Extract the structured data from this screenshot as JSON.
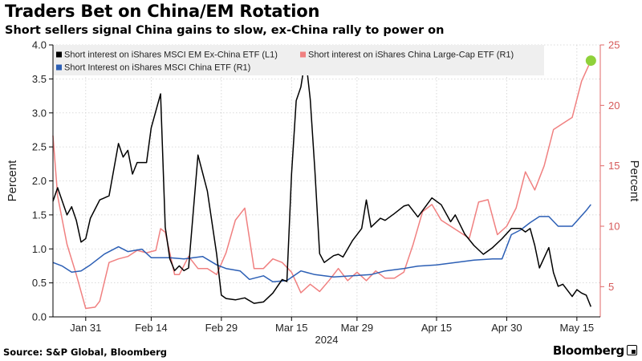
{
  "header": {
    "title": "Traders Bet on China/EM Rotation",
    "subtitle": "Short sellers signal China gains to slow, ex-China rally to power on"
  },
  "footer": {
    "source": "Source: S&P Global, Bloomberg",
    "brand": "Bloomberg"
  },
  "chart_data": {
    "type": "line",
    "ylabel_left": "Percent",
    "ylabel_right": "Percent",
    "xlabel": "2024",
    "left_axis": {
      "ylim": [
        0.0,
        4.0
      ],
      "ticks": [
        "0.0",
        "0.5",
        "1.0",
        "1.5",
        "2.0",
        "2.5",
        "3.0",
        "3.5",
        "4.0"
      ]
    },
    "right_axis": {
      "ylim": [
        2.5,
        25.0
      ],
      "ticks": [
        "5",
        "10",
        "15",
        "20",
        "25"
      ]
    },
    "x_range": [
      "2024-01-24",
      "2024-05-20"
    ],
    "x_ticks": [
      {
        "date": "2024-01-31",
        "label": "Jan 31"
      },
      {
        "date": "2024-02-14",
        "label": "Feb 14"
      },
      {
        "date": "2024-02-29",
        "label": "Feb 29"
      },
      {
        "date": "2024-03-15",
        "label": "Mar 15"
      },
      {
        "date": "2024-03-29",
        "label": "Mar 29"
      },
      {
        "date": "2024-04-15",
        "label": "Apr 15"
      },
      {
        "date": "2024-04-30",
        "label": "Apr 30"
      },
      {
        "date": "2024-05-15",
        "label": "May 15"
      }
    ],
    "grid": true,
    "legend_position": "top",
    "highlight": {
      "series": "Short interest on iShares China Large-Cap ETF (R1)",
      "date": "2024-05-18",
      "value": 23.7,
      "color": "#8fd13a"
    },
    "series": [
      {
        "name": "Short interest on iShares MSCI EM Ex-China ETF (L1)",
        "axis": "left",
        "color": "#000000",
        "points": [
          [
            "2024-01-24",
            1.7
          ],
          [
            "2024-01-25",
            1.9
          ],
          [
            "2024-01-27",
            1.5
          ],
          [
            "2024-01-28",
            1.62
          ],
          [
            "2024-01-29",
            1.42
          ],
          [
            "2024-01-30",
            1.1
          ],
          [
            "2024-01-31",
            1.15
          ],
          [
            "2024-02-01",
            1.45
          ],
          [
            "2024-02-03",
            1.72
          ],
          [
            "2024-02-05",
            1.78
          ],
          [
            "2024-02-07",
            2.55
          ],
          [
            "2024-02-08",
            2.35
          ],
          [
            "2024-02-09",
            2.45
          ],
          [
            "2024-02-10",
            2.1
          ],
          [
            "2024-02-11",
            2.27
          ],
          [
            "2024-02-13",
            2.27
          ],
          [
            "2024-02-14",
            2.78
          ],
          [
            "2024-02-16",
            3.28
          ],
          [
            "2024-02-17",
            1.32
          ],
          [
            "2024-02-18",
            0.85
          ],
          [
            "2024-02-19",
            0.68
          ],
          [
            "2024-02-20",
            0.75
          ],
          [
            "2024-02-21",
            0.68
          ],
          [
            "2024-02-22",
            0.72
          ],
          [
            "2024-02-24",
            2.38
          ],
          [
            "2024-02-26",
            1.85
          ],
          [
            "2024-02-28",
            0.92
          ],
          [
            "2024-02-29",
            0.32
          ],
          [
            "2024-03-01",
            0.27
          ],
          [
            "2024-03-03",
            0.25
          ],
          [
            "2024-03-05",
            0.28
          ],
          [
            "2024-03-07",
            0.2
          ],
          [
            "2024-03-09",
            0.22
          ],
          [
            "2024-03-11",
            0.35
          ],
          [
            "2024-03-13",
            0.55
          ],
          [
            "2024-03-14",
            0.52
          ],
          [
            "2024-03-15",
            2.1
          ],
          [
            "2024-03-16",
            3.18
          ],
          [
            "2024-03-17",
            3.38
          ],
          [
            "2024-03-18",
            3.82
          ],
          [
            "2024-03-19",
            3.2
          ],
          [
            "2024-03-20",
            2.15
          ],
          [
            "2024-03-21",
            0.93
          ],
          [
            "2024-03-22",
            0.8
          ],
          [
            "2024-03-24",
            0.9
          ],
          [
            "2024-03-25",
            0.92
          ],
          [
            "2024-03-26",
            0.88
          ],
          [
            "2024-03-28",
            1.12
          ],
          [
            "2024-03-30",
            1.3
          ],
          [
            "2024-03-31",
            1.72
          ],
          [
            "2024-04-01",
            1.32
          ],
          [
            "2024-04-03",
            1.45
          ],
          [
            "2024-04-04",
            1.42
          ],
          [
            "2024-04-06",
            1.52
          ],
          [
            "2024-04-08",
            1.63
          ],
          [
            "2024-04-09",
            1.65
          ],
          [
            "2024-04-11",
            1.47
          ],
          [
            "2024-04-14",
            1.75
          ],
          [
            "2024-04-16",
            1.65
          ],
          [
            "2024-04-18",
            1.4
          ],
          [
            "2024-04-19",
            1.5
          ],
          [
            "2024-04-21",
            1.22
          ],
          [
            "2024-04-23",
            1.05
          ],
          [
            "2024-04-25",
            0.92
          ],
          [
            "2024-04-27",
            1.02
          ],
          [
            "2024-04-29",
            1.15
          ],
          [
            "2024-05-01",
            1.3
          ],
          [
            "2024-05-03",
            1.3
          ],
          [
            "2024-05-04",
            1.25
          ],
          [
            "2024-05-05",
            1.3
          ],
          [
            "2024-05-06",
            1.05
          ],
          [
            "2024-05-07",
            0.72
          ],
          [
            "2024-05-09",
            1.02
          ],
          [
            "2024-05-10",
            0.65
          ],
          [
            "2024-05-11",
            0.45
          ],
          [
            "2024-05-12",
            0.48
          ],
          [
            "2024-05-14",
            0.3
          ],
          [
            "2024-05-15",
            0.4
          ],
          [
            "2024-05-16",
            0.35
          ],
          [
            "2024-05-17",
            0.32
          ],
          [
            "2024-05-18",
            0.15
          ]
        ]
      },
      {
        "name": "Short Interest on iShares MSCI China ETF (R1)",
        "axis": "right",
        "color": "#2c5fb5",
        "points": [
          [
            "2024-01-24",
            7.0
          ],
          [
            "2024-01-26",
            6.7
          ],
          [
            "2024-01-28",
            6.2
          ],
          [
            "2024-01-30",
            6.3
          ],
          [
            "2024-02-01",
            6.8
          ],
          [
            "2024-02-04",
            7.7
          ],
          [
            "2024-02-07",
            8.3
          ],
          [
            "2024-02-09",
            7.9
          ],
          [
            "2024-02-12",
            8.1
          ],
          [
            "2024-02-14",
            7.4
          ],
          [
            "2024-02-18",
            7.4
          ],
          [
            "2024-02-21",
            7.3
          ],
          [
            "2024-02-25",
            7.5
          ],
          [
            "2024-02-28",
            6.8
          ],
          [
            "2024-03-01",
            6.5
          ],
          [
            "2024-03-04",
            6.3
          ],
          [
            "2024-03-06",
            5.6
          ],
          [
            "2024-03-09",
            5.9
          ],
          [
            "2024-03-11",
            5.4
          ],
          [
            "2024-03-14",
            5.5
          ],
          [
            "2024-03-17",
            6.3
          ],
          [
            "2024-03-20",
            6.0
          ],
          [
            "2024-03-24",
            5.8
          ],
          [
            "2024-03-28",
            5.9
          ],
          [
            "2024-04-01",
            6.0
          ],
          [
            "2024-04-04",
            6.3
          ],
          [
            "2024-04-08",
            6.5
          ],
          [
            "2024-04-11",
            6.7
          ],
          [
            "2024-04-15",
            6.8
          ],
          [
            "2024-04-19",
            7.0
          ],
          [
            "2024-04-23",
            7.2
          ],
          [
            "2024-04-27",
            7.3
          ],
          [
            "2024-04-29",
            7.3
          ],
          [
            "2024-05-01",
            9.3
          ],
          [
            "2024-05-03",
            9.7
          ],
          [
            "2024-05-05",
            10.3
          ],
          [
            "2024-05-07",
            10.8
          ],
          [
            "2024-05-09",
            10.8
          ],
          [
            "2024-05-11",
            10.0
          ],
          [
            "2024-05-14",
            10.0
          ],
          [
            "2024-05-17",
            11.3
          ],
          [
            "2024-05-18",
            11.8
          ]
        ]
      },
      {
        "name": "Short interest on iShares China Large-Cap ETF (R1)",
        "axis": "right",
        "color": "#f08080",
        "points": [
          [
            "2024-01-24",
            17.5
          ],
          [
            "2024-01-25",
            12.5
          ],
          [
            "2024-01-27",
            8.5
          ],
          [
            "2024-01-29",
            6.0
          ],
          [
            "2024-01-31",
            3.2
          ],
          [
            "2024-02-02",
            3.3
          ],
          [
            "2024-02-03",
            3.8
          ],
          [
            "2024-02-05",
            7.0
          ],
          [
            "2024-02-07",
            7.3
          ],
          [
            "2024-02-09",
            7.5
          ],
          [
            "2024-02-11",
            8.0
          ],
          [
            "2024-02-13",
            7.8
          ],
          [
            "2024-02-15",
            8.0
          ],
          [
            "2024-02-16",
            9.8
          ],
          [
            "2024-02-17",
            9.5
          ],
          [
            "2024-02-19",
            6.0
          ],
          [
            "2024-02-20",
            6.0
          ],
          [
            "2024-02-22",
            7.5
          ],
          [
            "2024-02-24",
            6.5
          ],
          [
            "2024-02-26",
            6.5
          ],
          [
            "2024-02-28",
            6.0
          ],
          [
            "2024-03-01",
            7.8
          ],
          [
            "2024-03-03",
            10.5
          ],
          [
            "2024-03-05",
            11.5
          ],
          [
            "2024-03-07",
            6.5
          ],
          [
            "2024-03-09",
            6.5
          ],
          [
            "2024-03-11",
            7.3
          ],
          [
            "2024-03-13",
            7.0
          ],
          [
            "2024-03-15",
            6.2
          ],
          [
            "2024-03-17",
            4.5
          ],
          [
            "2024-03-19",
            5.2
          ],
          [
            "2024-03-21",
            4.6
          ],
          [
            "2024-03-23",
            5.5
          ],
          [
            "2024-03-25",
            6.5
          ],
          [
            "2024-03-27",
            5.5
          ],
          [
            "2024-03-29",
            6.2
          ],
          [
            "2024-03-31",
            5.5
          ],
          [
            "2024-04-02",
            6.3
          ],
          [
            "2024-04-04",
            5.7
          ],
          [
            "2024-04-06",
            5.7
          ],
          [
            "2024-04-08",
            6.2
          ],
          [
            "2024-04-10",
            8.5
          ],
          [
            "2024-04-12",
            11.2
          ],
          [
            "2024-04-14",
            11.8
          ],
          [
            "2024-04-16",
            10.5
          ],
          [
            "2024-04-18",
            10.0
          ],
          [
            "2024-04-20",
            9.5
          ],
          [
            "2024-04-22",
            9.0
          ],
          [
            "2024-04-24",
            12.0
          ],
          [
            "2024-04-26",
            12.2
          ],
          [
            "2024-04-28",
            9.3
          ],
          [
            "2024-04-30",
            10.0
          ],
          [
            "2024-05-02",
            11.5
          ],
          [
            "2024-05-04",
            14.5
          ],
          [
            "2024-05-06",
            13.0
          ],
          [
            "2024-05-08",
            15.0
          ],
          [
            "2024-05-10",
            18.0
          ],
          [
            "2024-05-12",
            18.5
          ],
          [
            "2024-05-14",
            19.0
          ],
          [
            "2024-05-16",
            22.0
          ],
          [
            "2024-05-18",
            23.7
          ]
        ]
      }
    ]
  }
}
